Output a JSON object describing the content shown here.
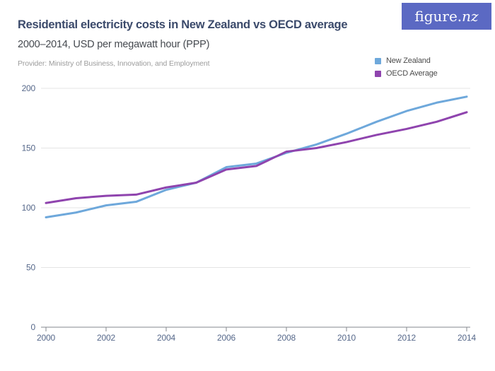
{
  "header": {
    "title": "Residential electricity costs in New Zealand vs OECD average",
    "subtitle": "2000–2014, USD per megawatt hour (PPP)",
    "provider": "Provider: Ministry of Business, Innovation, and Employment"
  },
  "logo": {
    "text_main": "figure.",
    "text_suffix": "nz",
    "background": "#5b69c3",
    "text_color": "#ffffff"
  },
  "legend": {
    "items": [
      {
        "label": "New Zealand",
        "color": "#6ea8db"
      },
      {
        "label": "OECD Average",
        "color": "#8f44ae"
      }
    ]
  },
  "chart_data": {
    "type": "line",
    "title": "Residential electricity costs in New Zealand vs OECD average",
    "subtitle": "2000–2014, USD per megawatt hour (PPP)",
    "xlabel": "",
    "ylabel": "USD per megawatt hour (PPP)",
    "x": [
      2000,
      2001,
      2002,
      2003,
      2004,
      2005,
      2006,
      2007,
      2008,
      2009,
      2010,
      2011,
      2012,
      2013,
      2014
    ],
    "series": [
      {
        "name": "New Zealand",
        "color": "#6ea8db",
        "values": [
          92,
          96,
          102,
          105,
          115,
          121,
          134,
          137,
          146,
          153,
          162,
          172,
          181,
          188,
          193
        ]
      },
      {
        "name": "OECD Average",
        "color": "#8f44ae",
        "values": [
          104,
          108,
          110,
          111,
          117,
          121,
          132,
          135,
          147,
          150,
          155,
          161,
          166,
          172,
          180
        ]
      }
    ],
    "xlim": [
      2000,
      2014
    ],
    "ylim": [
      0,
      200
    ],
    "yticks": [
      0,
      50,
      100,
      150,
      200
    ],
    "xticks": [
      2000,
      2002,
      2004,
      2006,
      2008,
      2010,
      2012,
      2014
    ],
    "grid": "horizontal",
    "legend_position": "top-right",
    "colors": {
      "gridline": "#e4e4e4",
      "axis_line": "#85888f",
      "tick_label": "#56688a"
    }
  }
}
